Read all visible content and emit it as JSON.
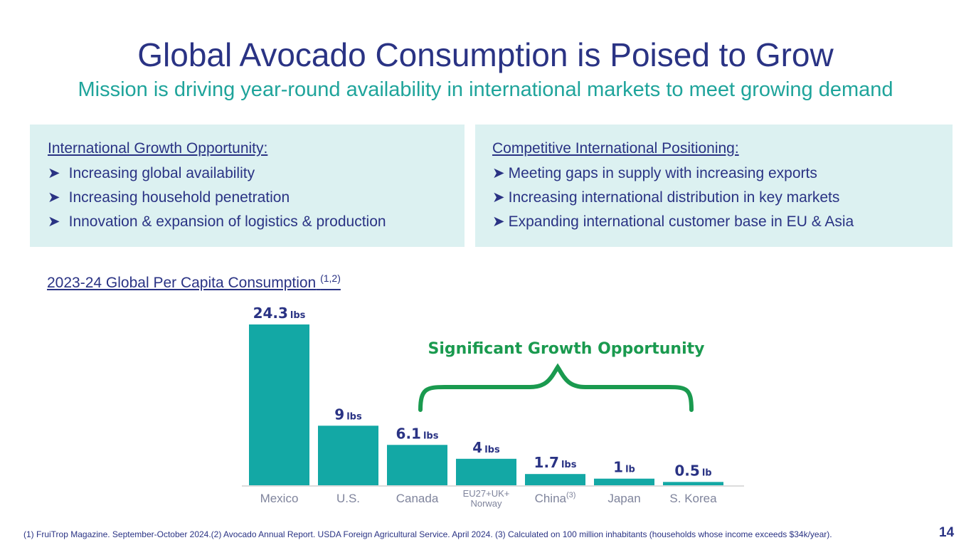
{
  "title": "Global Avocado Consumption is Poised to Grow",
  "subtitle": "Mission is driving year-round availability in international markets to meet growing demand",
  "boxes": [
    {
      "heading": "International Growth Opportunity:",
      "items": [
        "Increasing global availability",
        "Increasing household penetration",
        "Innovation & expansion of logistics & production"
      ]
    },
    {
      "heading": "Competitive International Positioning:",
      "items": [
        "Meeting gaps in supply with increasing exports",
        "Increasing international distribution in key markets",
        "Expanding international customer base in EU & Asia"
      ]
    }
  ],
  "bullet_glyph": "➤",
  "chart_data": {
    "type": "bar",
    "title": "2023-24 Global Per Capita Consumption",
    "title_note": "(1,2)",
    "categories": [
      "Mexico",
      "U.S.",
      "Canada",
      "EU27+UK+ Norway",
      "China",
      "Japan",
      "S. Korea"
    ],
    "category_notes": [
      "",
      "",
      "",
      "",
      "(3)",
      "",
      ""
    ],
    "values": [
      24.3,
      9,
      6.1,
      4,
      1.7,
      1,
      0.5
    ],
    "value_labels": [
      "24.3",
      "9",
      "6.1",
      "4",
      "1.7",
      "1",
      "0.5"
    ],
    "units": [
      "lbs",
      "lbs",
      "lbs",
      "lbs",
      "lbs",
      "lb",
      "lb"
    ],
    "annotation": "Significant Growth Opportunity",
    "bar_color": "#13a8a5",
    "label_color": "#2a3384",
    "annotation_color": "#1a9a4f",
    "grid": false
  },
  "footnote": "(1) FruiTrop Magazine. September-October 2024.(2) Avocado Annual Report. USDA Foreign Agricultural Service. April 2024. (3) Calculated on 100 million inhabitants (households whose income exceeds $34k/year).",
  "page_number": "14"
}
